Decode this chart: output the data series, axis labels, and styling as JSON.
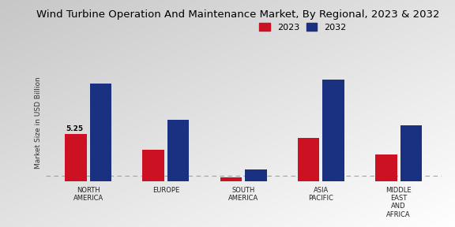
{
  "title": "Wind Turbine Operation And Maintenance Market, By Regional, 2023 & 2032",
  "ylabel": "Market Size in USD Billion",
  "categories": [
    "NORTH\nAMERICA",
    "EUROPE",
    "SOUTH\nAMERICA",
    "ASIA\nPACIFIC",
    "MIDDLE\nEAST\nAND\nAFRICA"
  ],
  "values_2023": [
    5.25,
    3.5,
    0.5,
    4.8,
    3.0
  ],
  "values_2032": [
    10.8,
    6.8,
    1.3,
    11.2,
    6.2
  ],
  "color_2023": "#cc1122",
  "color_2032": "#1a3080",
  "annotation_text": "5.25",
  "annotation_category_index": 0,
  "background_color_top": "#d0d0d0",
  "background_color_bottom": "#f8f8f8",
  "title_fontsize": 9.5,
  "label_fontsize": 6.0,
  "legend_fontsize": 8,
  "bar_width": 0.28,
  "ylim": [
    0,
    13
  ],
  "dashed_line_y": 0.65,
  "bar_gap": 0.04
}
